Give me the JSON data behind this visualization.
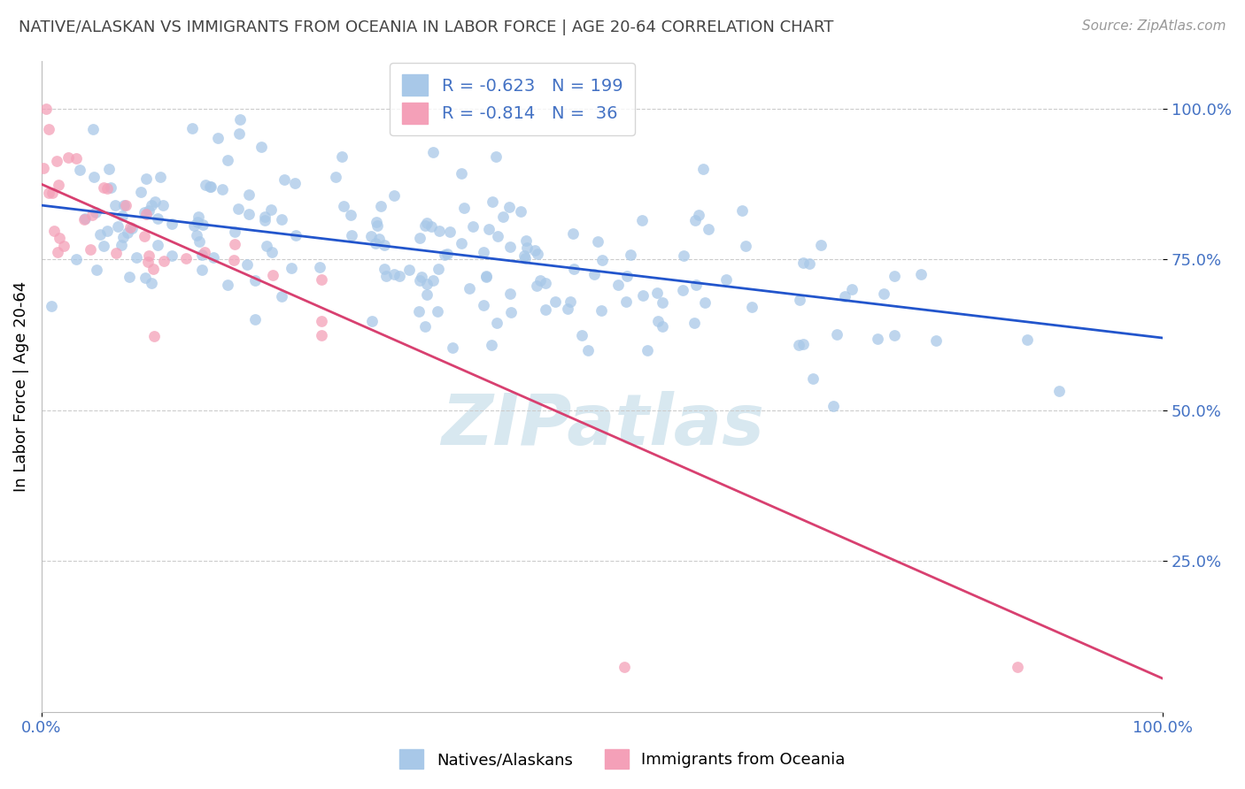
{
  "title": "NATIVE/ALASKAN VS IMMIGRANTS FROM OCEANIA IN LABOR FORCE | AGE 20-64 CORRELATION CHART",
  "source": "Source: ZipAtlas.com",
  "ylabel": "In Labor Force | Age 20-64",
  "ytick_labels": [
    "100.0%",
    "75.0%",
    "50.0%",
    "25.0%"
  ],
  "ytick_positions": [
    1.0,
    0.75,
    0.5,
    0.25
  ],
  "blue_R": -0.623,
  "blue_N": 199,
  "pink_R": -0.814,
  "pink_N": 36,
  "blue_color": "#a8c8e8",
  "pink_color": "#f4a0b8",
  "blue_line_color": "#2255cc",
  "pink_line_color": "#d84070",
  "label_color": "#4472c4",
  "title_color": "#444444",
  "background_color": "#ffffff",
  "grid_color": "#cccccc",
  "blue_slope": -0.22,
  "blue_intercept": 0.84,
  "pink_slope": -0.82,
  "pink_intercept": 0.875
}
